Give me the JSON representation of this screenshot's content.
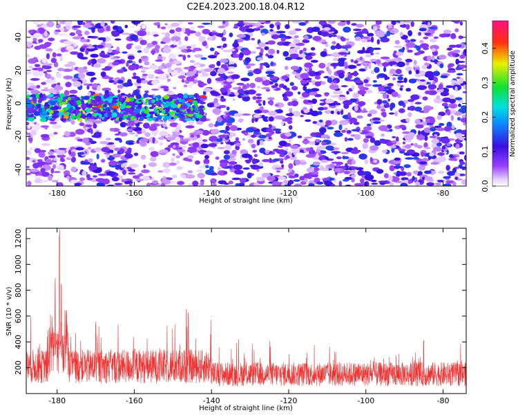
{
  "figure_title": "C2E4.2023.200.18.04.R12",
  "chart_data": [
    {
      "type": "heatmap",
      "title": "C2E4.2023.200.18.04.R12",
      "xlabel": "Height of straight line (km)",
      "ylabel": "Frequency (Hz)",
      "xlim": [
        -188,
        -74
      ],
      "ylim": [
        -50,
        50
      ],
      "xticks": [
        -180,
        -160,
        -140,
        -120,
        -100,
        -80
      ],
      "yticks": [
        -40,
        -20,
        0,
        20,
        40
      ],
      "colorbar": {
        "label": "Normalized spectral amplitude",
        "range": [
          0.0,
          0.48
        ],
        "ticks": [
          0.0,
          0.1,
          0.2,
          0.3,
          0.4
        ],
        "colormap": "rainbow (white-violet-blue-cyan-green-yellow-red-magenta)"
      },
      "features": {
        "signal_band_frequency_hz": [
          -10,
          5
        ],
        "signal_band_height_km": [
          -188,
          -142
        ],
        "signal_band_peak_amplitude": 0.45
      },
      "grid": false
    },
    {
      "type": "line",
      "xlabel": "Height of straight line (km)",
      "ylabel": "SNR (10 * v/v)",
      "xlim": [
        -188,
        -74
      ],
      "ylim": [
        0,
        1280
      ],
      "xticks": [
        -180,
        -160,
        -140,
        -120,
        -100,
        -80
      ],
      "yticks": [
        200,
        400,
        600,
        800,
        1000,
        1200
      ],
      "line_color": "#ee3333",
      "baseline_level": 150,
      "peaks": [
        {
          "x": -180.5,
          "y": 900
        },
        {
          "x": -179.4,
          "y": 1280
        },
        {
          "x": -178.9,
          "y": 850
        },
        {
          "x": -170.0,
          "y": 560
        },
        {
          "x": -146.5,
          "y": 670
        },
        {
          "x": -146.0,
          "y": 640
        },
        {
          "x": -85.0,
          "y": 420
        }
      ],
      "grid": false
    }
  ]
}
